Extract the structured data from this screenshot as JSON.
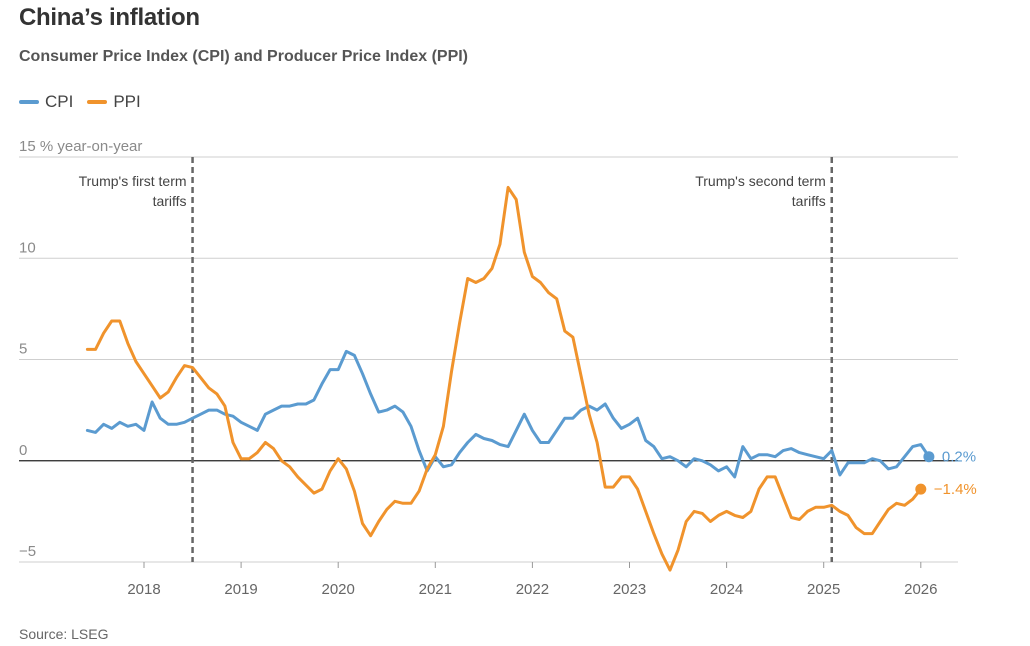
{
  "chart_data": {
    "type": "line",
    "title": "China’s inflation",
    "subtitle": "Consumer Price Index (CPI) and Producer Price Index (PPI)",
    "ylabel": "15 % year-on-year",
    "ylim": [
      -5,
      15
    ],
    "yticks": [
      {
        "value": 15,
        "label": "15 % year-on-year"
      },
      {
        "value": 10,
        "label": "10"
      },
      {
        "value": 5,
        "label": "5"
      },
      {
        "value": 0,
        "label": "0"
      },
      {
        "value": -5,
        "label": "−5"
      }
    ],
    "xlim": [
      2017.0,
      2026.17
    ],
    "xticks": [
      "2018",
      "2019",
      "2020",
      "2021",
      "2022",
      "2023",
      "2024",
      "2025",
      "2026"
    ],
    "legend": [
      {
        "name": "CPI",
        "color": "#5b9bd0"
      },
      {
        "name": "PPI",
        "color": "#f0932c"
      }
    ],
    "annotations": [
      {
        "x": 2018.5,
        "lines": [
          "Trump's first term",
          "tariffs"
        ]
      },
      {
        "x": 2025.083,
        "lines": [
          "Trump's second term",
          "tariffs"
        ]
      }
    ],
    "series": [
      {
        "name": "CPI",
        "color": "#5b9bd0",
        "start": 2017.417,
        "step": 0.08333,
        "end_label": "0.2%",
        "values": [
          1.5,
          1.4,
          1.8,
          1.6,
          1.9,
          1.7,
          1.8,
          1.5,
          2.9,
          2.1,
          1.8,
          1.8,
          1.9,
          2.1,
          2.3,
          2.5,
          2.5,
          2.3,
          2.2,
          1.9,
          1.7,
          1.5,
          2.3,
          2.5,
          2.7,
          2.7,
          2.8,
          2.8,
          3.0,
          3.8,
          4.5,
          4.5,
          5.4,
          5.2,
          4.3,
          3.3,
          2.4,
          2.5,
          2.7,
          2.4,
          1.7,
          0.5,
          -0.5,
          0.2,
          -0.3,
          -0.2,
          0.4,
          0.9,
          1.3,
          1.1,
          1.0,
          0.8,
          0.7,
          1.5,
          2.3,
          1.5,
          0.9,
          0.9,
          1.5,
          2.1,
          2.1,
          2.5,
          2.7,
          2.5,
          2.8,
          2.1,
          1.6,
          1.8,
          2.1,
          1.0,
          0.7,
          0.1,
          0.2,
          0.0,
          -0.3,
          0.1,
          0.0,
          -0.2,
          -0.5,
          -0.3,
          -0.8,
          0.7,
          0.1,
          0.3,
          0.3,
          0.2,
          0.5,
          0.6,
          0.4,
          0.3,
          0.2,
          0.1,
          0.5,
          -0.7,
          -0.1,
          -0.1,
          -0.1,
          0.1,
          0.0,
          -0.4,
          -0.3,
          0.2,
          0.7,
          0.8,
          0.2
        ]
      },
      {
        "name": "PPI",
        "color": "#f0932c",
        "start": 2017.417,
        "step": 0.08333,
        "end_label": "−1.4%",
        "values": [
          5.5,
          5.5,
          6.3,
          6.9,
          6.9,
          5.8,
          4.9,
          4.3,
          3.7,
          3.1,
          3.4,
          4.1,
          4.7,
          4.6,
          4.1,
          3.6,
          3.3,
          2.7,
          0.9,
          0.1,
          0.1,
          0.4,
          0.9,
          0.6,
          0.0,
          -0.3,
          -0.8,
          -1.2,
          -1.6,
          -1.4,
          -0.5,
          0.1,
          -0.4,
          -1.5,
          -3.1,
          -3.7,
          -3.0,
          -2.4,
          -2.0,
          -2.1,
          -2.1,
          -1.5,
          -0.4,
          0.3,
          1.7,
          4.4,
          6.8,
          9.0,
          8.8,
          9.0,
          9.5,
          10.7,
          13.5,
          12.9,
          10.3,
          9.1,
          8.8,
          8.3,
          8.0,
          6.4,
          6.1,
          4.2,
          2.3,
          0.9,
          -1.3,
          -1.3,
          -0.8,
          -0.8,
          -1.4,
          -2.5,
          -3.6,
          -4.6,
          -5.4,
          -4.4,
          -3.0,
          -2.5,
          -2.6,
          -3.0,
          -2.7,
          -2.5,
          -2.7,
          -2.8,
          -2.5,
          -1.4,
          -0.8,
          -0.8,
          -1.8,
          -2.8,
          -2.9,
          -2.5,
          -2.3,
          -2.3,
          -2.2,
          -2.5,
          -2.7,
          -3.3,
          -3.6,
          -3.6,
          -3.0,
          -2.4,
          -2.1,
          -2.2,
          -1.9,
          -1.4
        ]
      }
    ]
  },
  "source": "Source: LSEG"
}
